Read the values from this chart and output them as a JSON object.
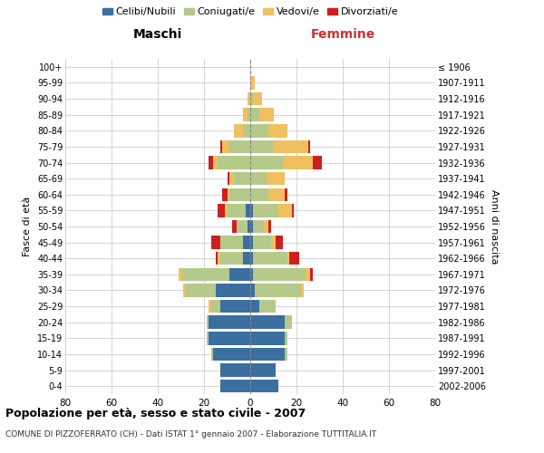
{
  "age_groups": [
    "0-4",
    "5-9",
    "10-14",
    "15-19",
    "20-24",
    "25-29",
    "30-34",
    "35-39",
    "40-44",
    "45-49",
    "50-54",
    "55-59",
    "60-64",
    "65-69",
    "70-74",
    "75-79",
    "80-84",
    "85-89",
    "90-94",
    "95-99",
    "100+"
  ],
  "birth_years": [
    "2002-2006",
    "1997-2001",
    "1992-1996",
    "1987-1991",
    "1982-1986",
    "1977-1981",
    "1972-1976",
    "1967-1971",
    "1962-1966",
    "1957-1961",
    "1952-1956",
    "1947-1951",
    "1942-1946",
    "1937-1941",
    "1932-1936",
    "1927-1931",
    "1922-1926",
    "1917-1921",
    "1912-1916",
    "1907-1911",
    "≤ 1906"
  ],
  "male": {
    "celibi": [
      13,
      13,
      16,
      18,
      18,
      13,
      15,
      9,
      3,
      3,
      1,
      2,
      0,
      0,
      0,
      0,
      0,
      0,
      0,
      0,
      0
    ],
    "coniugati": [
      0,
      0,
      1,
      1,
      1,
      4,
      13,
      21,
      10,
      10,
      5,
      8,
      9,
      7,
      14,
      9,
      3,
      1,
      0,
      0,
      0
    ],
    "vedovi": [
      0,
      0,
      0,
      0,
      0,
      1,
      1,
      1,
      1,
      0,
      0,
      1,
      1,
      2,
      2,
      3,
      4,
      2,
      1,
      0,
      0
    ],
    "divorziati": [
      0,
      0,
      0,
      0,
      0,
      0,
      0,
      0,
      1,
      4,
      2,
      3,
      2,
      1,
      2,
      1,
      0,
      0,
      0,
      0,
      0
    ]
  },
  "female": {
    "nubili": [
      12,
      11,
      15,
      15,
      15,
      4,
      2,
      1,
      1,
      1,
      1,
      1,
      0,
      0,
      0,
      0,
      0,
      0,
      0,
      0,
      0
    ],
    "coniugate": [
      0,
      0,
      1,
      1,
      3,
      7,
      20,
      23,
      15,
      8,
      5,
      11,
      8,
      7,
      14,
      10,
      8,
      4,
      1,
      0,
      0
    ],
    "vedove": [
      0,
      0,
      0,
      0,
      0,
      0,
      1,
      2,
      1,
      2,
      2,
      6,
      7,
      8,
      13,
      15,
      8,
      6,
      4,
      2,
      0
    ],
    "divorziate": [
      0,
      0,
      0,
      0,
      0,
      0,
      0,
      1,
      4,
      3,
      1,
      1,
      1,
      0,
      4,
      1,
      0,
      0,
      0,
      0,
      0
    ]
  },
  "colors": {
    "celibi": "#3b6fa0",
    "coniugati": "#b5c98a",
    "vedovi": "#f0c060",
    "divorziati": "#cc2020"
  },
  "title": "Popolazione per età, sesso e stato civile - 2007",
  "subtitle": "COMUNE DI PIZZOFERRATO (CH) - Dati ISTAT 1° gennaio 2007 - Elaborazione TUTTITALIA.IT",
  "xlabel_left": "Maschi",
  "xlabel_right": "Femmine",
  "ylabel_left": "Fasce di età",
  "ylabel_right": "Anni di nascita",
  "xlim": 80,
  "bg_color": "#ffffff",
  "grid_color": "#cccccc"
}
